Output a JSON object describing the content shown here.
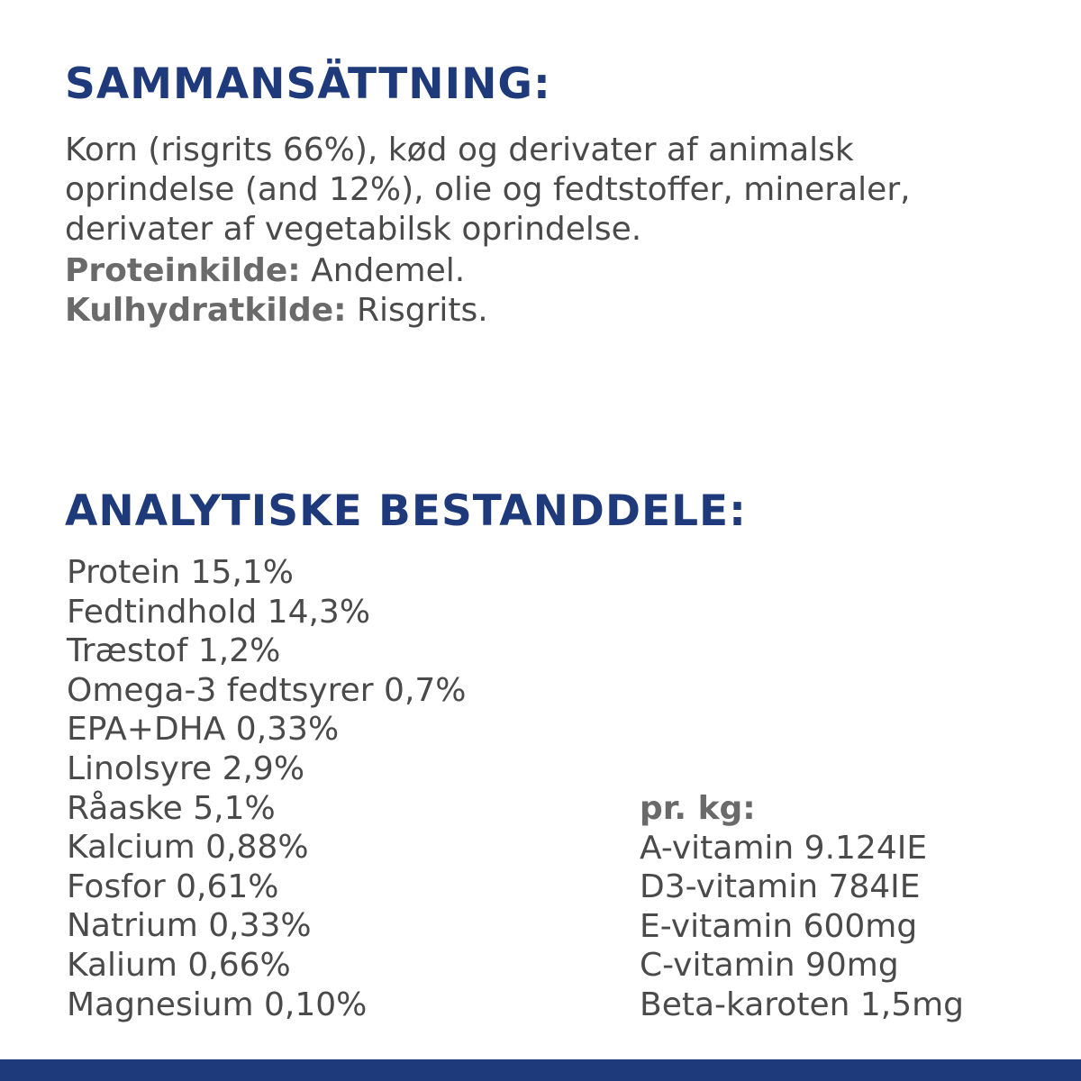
{
  "composition": {
    "title": "SAMMANSÄTTNING:",
    "lines": [
      "Korn (risgrits 66%), kød og derivater af animalsk",
      "oprindelse (and 12%), olie og fedtstoffer, mineraler,",
      "derivater af vegetabilsk oprindelse."
    ],
    "protein_source": {
      "label": "Proteinkilde:",
      "value": " Andemel."
    },
    "carb_source": {
      "label": "Kulhydratkilde:",
      "value": " Risgrits."
    }
  },
  "analytical": {
    "title": "ANALYTISKE BESTANDDELE:",
    "items": [
      "Protein 15,1%",
      "Fedtindhold 14,3%",
      "Træstof 1,2%",
      "Omega-3 fedtsyrer 0,7%",
      "EPA+DHA 0,33%",
      "Linolsyre 2,9%",
      "Råaske 5,1%",
      "Kalcium 0,88%",
      "Fosfor 0,61%",
      "Natrium 0,33%",
      "Kalium 0,66%",
      "Magnesium 0,10%"
    ]
  },
  "per_kg": {
    "label": "pr. kg:",
    "items": [
      "A-vitamin 9.124IE",
      "D3-vitamin 784IE",
      "E-vitamin 600mg",
      "C-vitamin 90mg",
      "Beta-karoten 1,5mg"
    ]
  },
  "colors": {
    "heading": "#1f3a7a",
    "text": "#4a4a4a",
    "bold_text": "#6a6a6a",
    "footer_bar": "#1f3a7a"
  }
}
